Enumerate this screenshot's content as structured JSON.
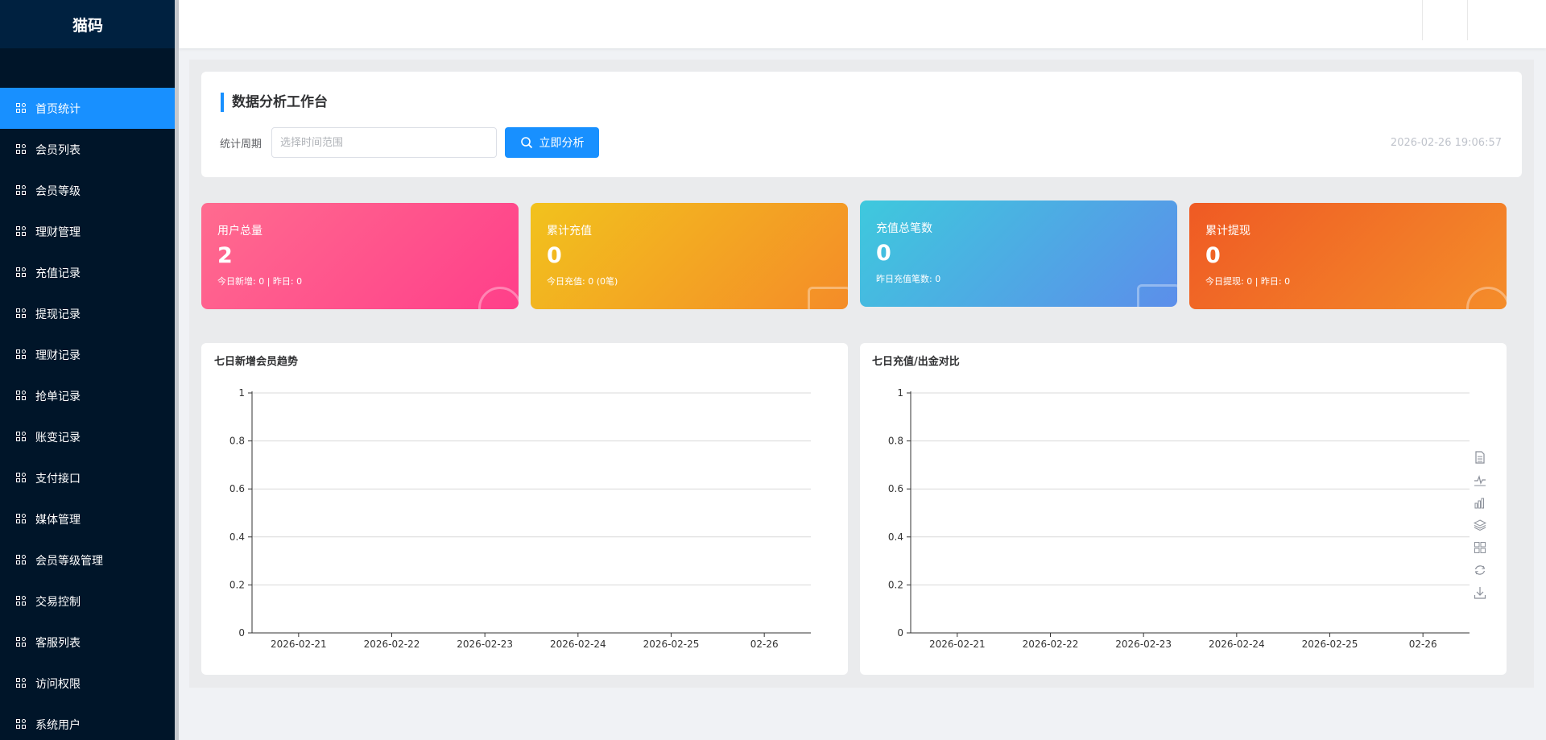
{
  "app": {
    "logo": "猫码"
  },
  "sidebar": {
    "items": [
      {
        "label": "首页统计",
        "active": true
      },
      {
        "label": "会员列表"
      },
      {
        "label": "会员等级"
      },
      {
        "label": "理财管理"
      },
      {
        "label": "充值记录"
      },
      {
        "label": "提现记录"
      },
      {
        "label": "理财记录"
      },
      {
        "label": "抢单记录"
      },
      {
        "label": "账变记录"
      },
      {
        "label": "支付接口"
      },
      {
        "label": "媒体管理"
      },
      {
        "label": "会员等级管理"
      },
      {
        "label": "交易控制"
      },
      {
        "label": "客服列表"
      },
      {
        "label": "访问权限"
      },
      {
        "label": "系统用户"
      }
    ]
  },
  "panel": {
    "title": "数据分析工作台",
    "period_label": "统计周期",
    "range_placeholder": "选择时间范围",
    "analyze_label": "立即分析",
    "timestamp": "2026-02-26 19:06:57"
  },
  "stats": [
    {
      "label": "用户总量",
      "value": "2",
      "sub": "今日新增: 0 | 昨日: 0"
    },
    {
      "label": "累计充值",
      "value": "0",
      "sub": "今日充值: 0 (0笔)"
    },
    {
      "label": "充值总笔数",
      "value": "0",
      "sub": "昨日充值笔数: 0"
    },
    {
      "label": "累计提现",
      "value": "0",
      "sub": "今日提现: 0 | 昨日: 0"
    }
  ],
  "colors": {
    "accent": "#1890ff",
    "sidebar_bg": "#001529"
  },
  "chart_data": [
    {
      "type": "line",
      "title": "七日新增会员趋势",
      "categories": [
        "2026-02-21",
        "2026-02-22",
        "2026-02-23",
        "2026-02-24",
        "2026-02-25",
        "02-26"
      ],
      "y_ticks": [
        "0",
        "0.2",
        "0.4",
        "0.6",
        "0.8",
        "1"
      ],
      "ylim": [
        0,
        1
      ],
      "series": [],
      "grid": true
    },
    {
      "type": "bar",
      "title": "七日充值/出金对比",
      "categories": [
        "2026-02-21",
        "2026-02-22",
        "2026-02-23",
        "2026-02-24",
        "2026-02-25",
        "02-26"
      ],
      "y_ticks": [
        "0",
        "0.2",
        "0.4",
        "0.6",
        "0.8",
        "1"
      ],
      "ylim": [
        0,
        1
      ],
      "series": [],
      "grid": true,
      "toolbox": [
        "data-view-icon",
        "line-chart-icon",
        "bar-chart-icon",
        "stack-icon",
        "tiled-icon",
        "restore-icon",
        "save-image-icon"
      ]
    }
  ]
}
